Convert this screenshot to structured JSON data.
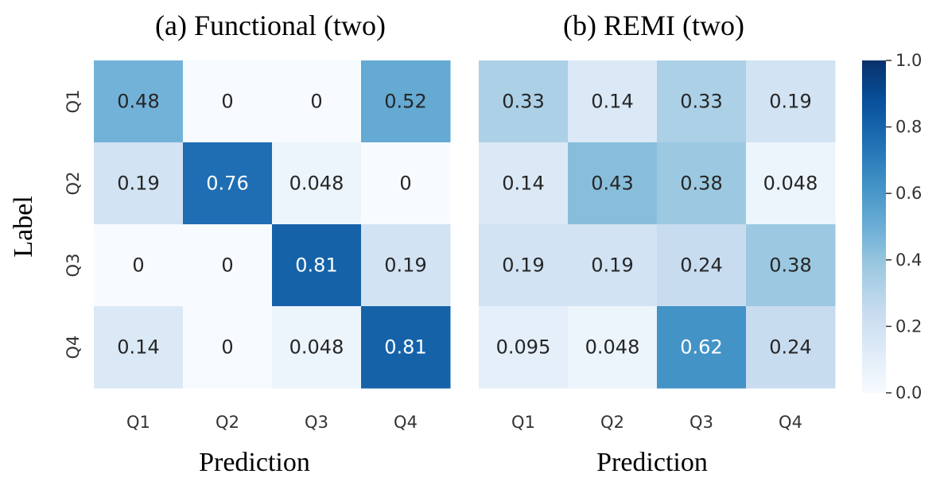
{
  "chart_data": [
    {
      "type": "heatmap",
      "title": "(a) Functional (two)",
      "xlabel": "Prediction",
      "ylabel": "Label",
      "x_categories": [
        "Q1",
        "Q2",
        "Q3",
        "Q4"
      ],
      "y_categories": [
        "Q1",
        "Q2",
        "Q3",
        "Q4"
      ],
      "values": [
        [
          0.48,
          0,
          0,
          0.52
        ],
        [
          0.19,
          0.76,
          0.048,
          0
        ],
        [
          0,
          0,
          0.81,
          0.19
        ],
        [
          0.14,
          0,
          0.048,
          0.81
        ]
      ],
      "value_labels": [
        [
          "0.48",
          "0",
          "0",
          "0.52"
        ],
        [
          "0.19",
          "0.76",
          "0.048",
          "0"
        ],
        [
          "0",
          "0",
          "0.81",
          "0.19"
        ],
        [
          "0.14",
          "0",
          "0.048",
          "0.81"
        ]
      ]
    },
    {
      "type": "heatmap",
      "title": "(b) REMI (two)",
      "xlabel": "Prediction",
      "ylabel": "",
      "x_categories": [
        "Q1",
        "Q2",
        "Q3",
        "Q4"
      ],
      "y_categories": [
        "Q1",
        "Q2",
        "Q3",
        "Q4"
      ],
      "values": [
        [
          0.33,
          0.14,
          0.33,
          0.19
        ],
        [
          0.14,
          0.43,
          0.38,
          0.048
        ],
        [
          0.19,
          0.19,
          0.24,
          0.38
        ],
        [
          0.095,
          0.048,
          0.62,
          0.24
        ]
      ],
      "value_labels": [
        [
          "0.33",
          "0.14",
          "0.33",
          "0.19"
        ],
        [
          "0.14",
          "0.43",
          "0.38",
          "0.048"
        ],
        [
          "0.19",
          "0.19",
          "0.24",
          "0.38"
        ],
        [
          "0.095",
          "0.048",
          "0.62",
          "0.24"
        ]
      ]
    }
  ],
  "colorbar": {
    "range": [
      0,
      1
    ],
    "ticks": [
      0,
      0.2,
      0.4,
      0.6,
      0.8,
      1.0
    ],
    "tick_labels": [
      "0.0",
      "0.2",
      "0.4",
      "0.6",
      "0.8",
      "1.0"
    ],
    "colormap": "Blues",
    "colors": [
      "#f7fbff",
      "#deebf7",
      "#c6dbef",
      "#9ecae1",
      "#6baed6",
      "#4292c6",
      "#2171b5",
      "#08519c",
      "#08306b"
    ]
  }
}
